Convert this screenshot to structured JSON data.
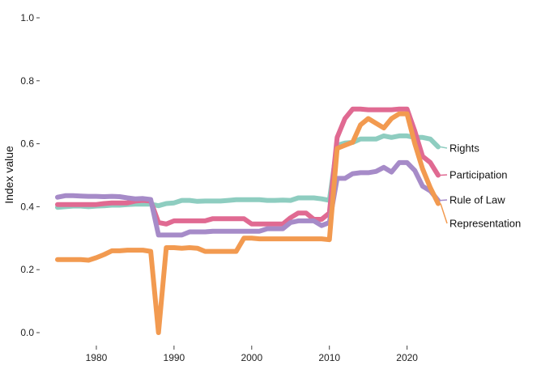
{
  "chart_data": {
    "type": "line",
    "title": "",
    "xlabel": "",
    "ylabel": "Index value",
    "xlim": [
      1974,
      2024
    ],
    "ylim": [
      0,
      1
    ],
    "x_ticks": [
      "1980",
      "1990",
      "2000",
      "2010",
      "2020"
    ],
    "y_ticks": [
      "0.0",
      "0.2",
      "0.4",
      "0.6",
      "0.8",
      "1.0"
    ],
    "grid": false,
    "legend": "direct labels at line ends (right)",
    "x": [
      1975,
      1976,
      1977,
      1978,
      1979,
      1980,
      1981,
      1982,
      1983,
      1984,
      1985,
      1986,
      1987,
      1988,
      1989,
      1990,
      1991,
      1992,
      1993,
      1994,
      1995,
      1996,
      1997,
      1998,
      1999,
      2000,
      2001,
      2002,
      2003,
      2004,
      2005,
      2006,
      2007,
      2008,
      2009,
      2010,
      2011,
      2012,
      2013,
      2014,
      2015,
      2016,
      2017,
      2018,
      2019,
      2020,
      2021,
      2022,
      2023,
      2024
    ],
    "series": [
      {
        "name": "Rights",
        "color": "#8ecdc0",
        "values": [
          0.398,
          0.4,
          0.402,
          0.402,
          0.4,
          0.402,
          0.403,
          0.405,
          0.405,
          0.407,
          0.408,
          0.408,
          0.408,
          0.403,
          0.41,
          0.412,
          0.42,
          0.42,
          0.417,
          0.418,
          0.418,
          0.418,
          0.42,
          0.422,
          0.422,
          0.422,
          0.422,
          0.42,
          0.42,
          0.421,
          0.42,
          0.428,
          0.428,
          0.428,
          0.425,
          0.42,
          0.595,
          0.602,
          0.604,
          0.615,
          0.615,
          0.615,
          0.625,
          0.62,
          0.625,
          0.625,
          0.62,
          0.62,
          0.615,
          0.59
        ]
      },
      {
        "name": "Participation",
        "color": "#e06a92",
        "values": [
          0.407,
          0.407,
          0.407,
          0.407,
          0.407,
          0.407,
          0.41,
          0.412,
          0.412,
          0.412,
          0.418,
          0.42,
          0.418,
          0.35,
          0.345,
          0.355,
          0.355,
          0.355,
          0.355,
          0.355,
          0.362,
          0.362,
          0.362,
          0.362,
          0.362,
          0.345,
          0.345,
          0.345,
          0.345,
          0.345,
          0.365,
          0.38,
          0.38,
          0.36,
          0.36,
          0.38,
          0.62,
          0.68,
          0.71,
          0.71,
          0.708,
          0.708,
          0.708,
          0.708,
          0.71,
          0.71,
          0.64,
          0.56,
          0.54,
          0.5
        ]
      },
      {
        "name": "Rule of Law",
        "color": "#a68bc8",
        "values": [
          0.43,
          0.435,
          0.435,
          0.434,
          0.433,
          0.433,
          0.432,
          0.433,
          0.432,
          0.428,
          0.425,
          0.426,
          0.423,
          0.31,
          0.31,
          0.31,
          0.31,
          0.32,
          0.32,
          0.32,
          0.322,
          0.322,
          0.322,
          0.322,
          0.322,
          0.322,
          0.322,
          0.33,
          0.33,
          0.33,
          0.35,
          0.355,
          0.355,
          0.355,
          0.34,
          0.35,
          0.49,
          0.49,
          0.505,
          0.508,
          0.508,
          0.512,
          0.525,
          0.51,
          0.54,
          0.54,
          0.515,
          0.465,
          0.45,
          0.42
        ]
      },
      {
        "name": "Representation",
        "color": "#f29a50",
        "values": [
          0.232,
          0.232,
          0.232,
          0.232,
          0.23,
          0.238,
          0.248,
          0.26,
          0.26,
          0.262,
          0.262,
          0.262,
          0.258,
          0.0,
          0.27,
          0.27,
          0.268,
          0.27,
          0.268,
          0.258,
          0.258,
          0.258,
          0.258,
          0.258,
          0.3,
          0.3,
          0.298,
          0.298,
          0.298,
          0.298,
          0.298,
          0.298,
          0.298,
          0.298,
          0.298,
          0.295,
          0.585,
          0.595,
          0.605,
          0.66,
          0.68,
          0.665,
          0.65,
          0.68,
          0.695,
          0.695,
          0.6,
          0.52,
          0.46,
          0.41
        ]
      }
    ]
  }
}
